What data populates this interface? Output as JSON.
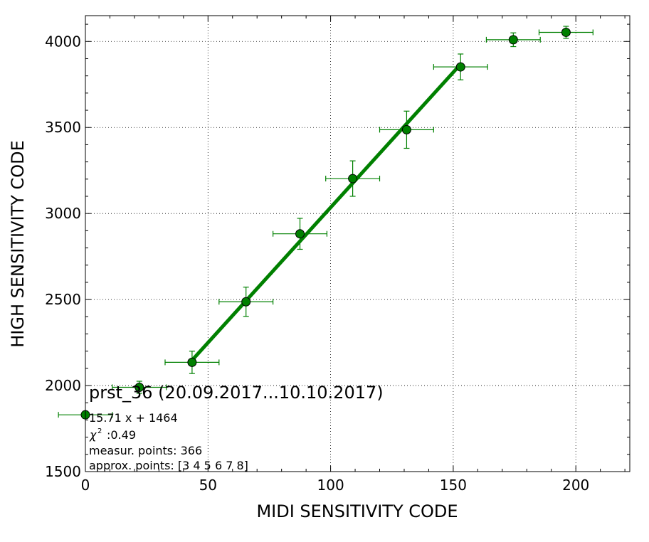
{
  "chart_data": {
    "type": "scatter",
    "title": "",
    "xlabel": "MIDI SENSITIVITY CODE",
    "ylabel": "HIGH SENSITIVITY CODE",
    "xlim": [
      0,
      222
    ],
    "ylim": [
      1500,
      4150
    ],
    "xticks": [
      0,
      50,
      100,
      150,
      200
    ],
    "yticks": [
      1500,
      2000,
      2500,
      3000,
      3500,
      4000
    ],
    "grid": true,
    "colors": {
      "series": "#008000",
      "marker_edge": "#000000",
      "fit_line": "#008000"
    },
    "series": [
      {
        "points": [
          {
            "x": 0,
            "y": 1830,
            "xerr": 11,
            "yerr": 20
          },
          {
            "x": 22,
            "y": 1990,
            "xerr": 11,
            "yerr": 35
          },
          {
            "x": 43.5,
            "y": 2135,
            "xerr": 11,
            "yerr": 65
          },
          {
            "x": 65.5,
            "y": 2487,
            "xerr": 11,
            "yerr": 85
          },
          {
            "x": 87.5,
            "y": 2882,
            "xerr": 11,
            "yerr": 90
          },
          {
            "x": 109,
            "y": 3203,
            "xerr": 11,
            "yerr": 103
          },
          {
            "x": 131,
            "y": 3487,
            "xerr": 11,
            "yerr": 108
          },
          {
            "x": 153,
            "y": 3852,
            "xerr": 11,
            "yerr": 75
          },
          {
            "x": 174.5,
            "y": 4010,
            "xerr": 11,
            "yerr": 40
          },
          {
            "x": 196,
            "y": 4053,
            "xerr": 11,
            "yerr": 35
          }
        ]
      }
    ],
    "fit_line": {
      "slope": 15.71,
      "intercept": 1464,
      "x_start": 43.5,
      "x_end": 153
    },
    "annotations": {
      "header": "prst_36 (20.09.2017...10.10.2017)",
      "equation": "15.71 x + 1464",
      "chi_symbol": "χ",
      "chi_exponent": "2",
      "chi_value": ":0.49",
      "measur_points": "measur. points: 366",
      "approx_points": "approx. points: [3 4 5 6 7 8]"
    }
  }
}
